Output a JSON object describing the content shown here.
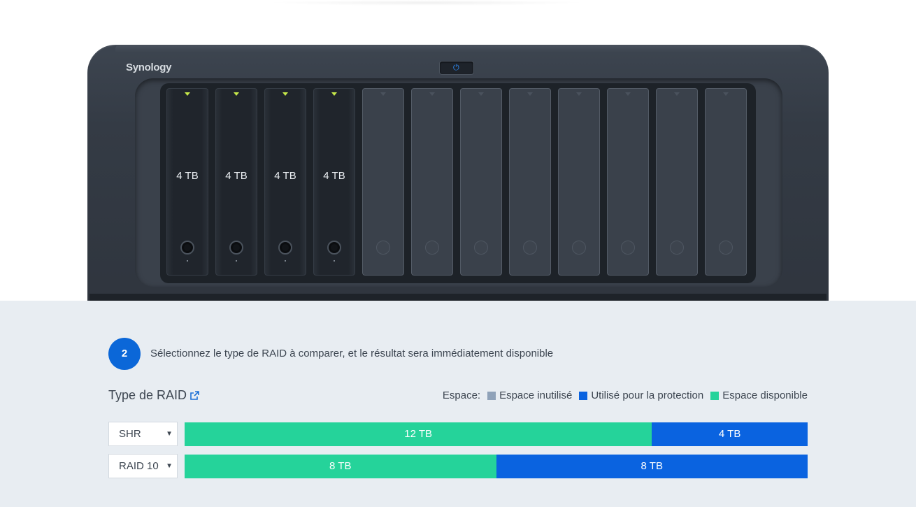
{
  "device": {
    "brand": "Synology",
    "bays_total": 12,
    "drives": [
      {
        "label": "4 TB",
        "installed": true
      },
      {
        "label": "4 TB",
        "installed": true
      },
      {
        "label": "4 TB",
        "installed": true
      },
      {
        "label": "4 TB",
        "installed": true
      }
    ]
  },
  "step": {
    "number": "2",
    "text": "Sélectionnez le type de RAID à comparer, et le résultat sera immédiatement disponible"
  },
  "raid": {
    "title": "Type de RAID",
    "link_icon": "external-link-icon"
  },
  "legend": {
    "label": "Espace:",
    "items": [
      {
        "label": "Espace inutilisé",
        "color": "#8fa2b9"
      },
      {
        "label": "Utilisé pour la protection",
        "color": "#0a63e0"
      },
      {
        "label": "Espace disponible",
        "color": "#25d39a"
      }
    ]
  },
  "colors": {
    "available": "#25d39a",
    "protection": "#0a63e0",
    "accent": "#0b67d8"
  },
  "rows": [
    {
      "raid_type": "SHR",
      "available": "12 TB",
      "protection": "4 TB",
      "available_tb": 12,
      "protection_tb": 4
    },
    {
      "raid_type": "RAID 10",
      "available": "8 TB",
      "protection": "8 TB",
      "available_tb": 8,
      "protection_tb": 8
    }
  ]
}
